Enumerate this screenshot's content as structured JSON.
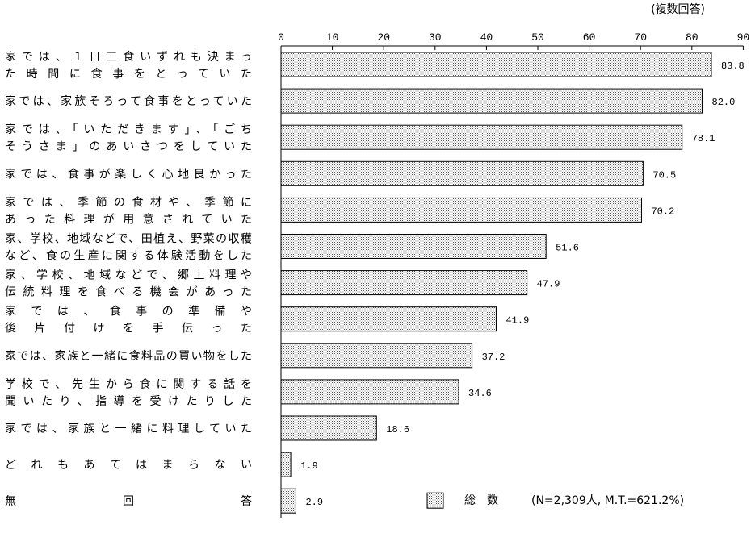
{
  "chart_data": {
    "type": "bar",
    "orientation": "horizontal",
    "note": "(複数回答)",
    "unit": "(%)",
    "xlim": [
      0,
      90
    ],
    "xticks": [
      0,
      10,
      20,
      30,
      40,
      50,
      60,
      70,
      80,
      90
    ],
    "grid": false,
    "legend_position": "bottom-right",
    "bar_pattern": "dotted",
    "categories": [
      [
        "家では、１日三食いずれも決まっ",
        "た時間に食事をとっていた"
      ],
      [
        "家では、家族そろって食事をとっていた"
      ],
      [
        "家では、「いただきます」、「ごち",
        "そうさま」のあいさつをしていた"
      ],
      [
        "家では、食事が楽しく心地良かった"
      ],
      [
        "家では、季節の食材や、季節に",
        "あった料理が用意されていた"
      ],
      [
        "家、学校、地域などで、田植え、野菜の収穫",
        "など、食の生産に関する体験活動をした"
      ],
      [
        "家、学校、地域などで、郷土料理や",
        "伝統料理を食べる機会があった"
      ],
      [
        "家では、食事の準備や",
        "後片付けを手伝った"
      ],
      [
        "家では、家族と一緒に食料品の買い物をした"
      ],
      [
        "学校で、先生から食に関する話を",
        "聞いたり、指導を受けたりした"
      ],
      [
        "家では、家族と一緒に料理していた"
      ],
      [
        "どれもあてはまらない"
      ],
      [
        "無回答"
      ]
    ],
    "series": [
      {
        "name": "総　数",
        "values": [
          83.8,
          82.0,
          78.1,
          70.5,
          70.2,
          51.6,
          47.9,
          41.9,
          37.2,
          34.6,
          18.6,
          1.9,
          2.9
        ]
      }
    ],
    "legend_note": "(N=2,309人, M.T.=621.2%)"
  }
}
